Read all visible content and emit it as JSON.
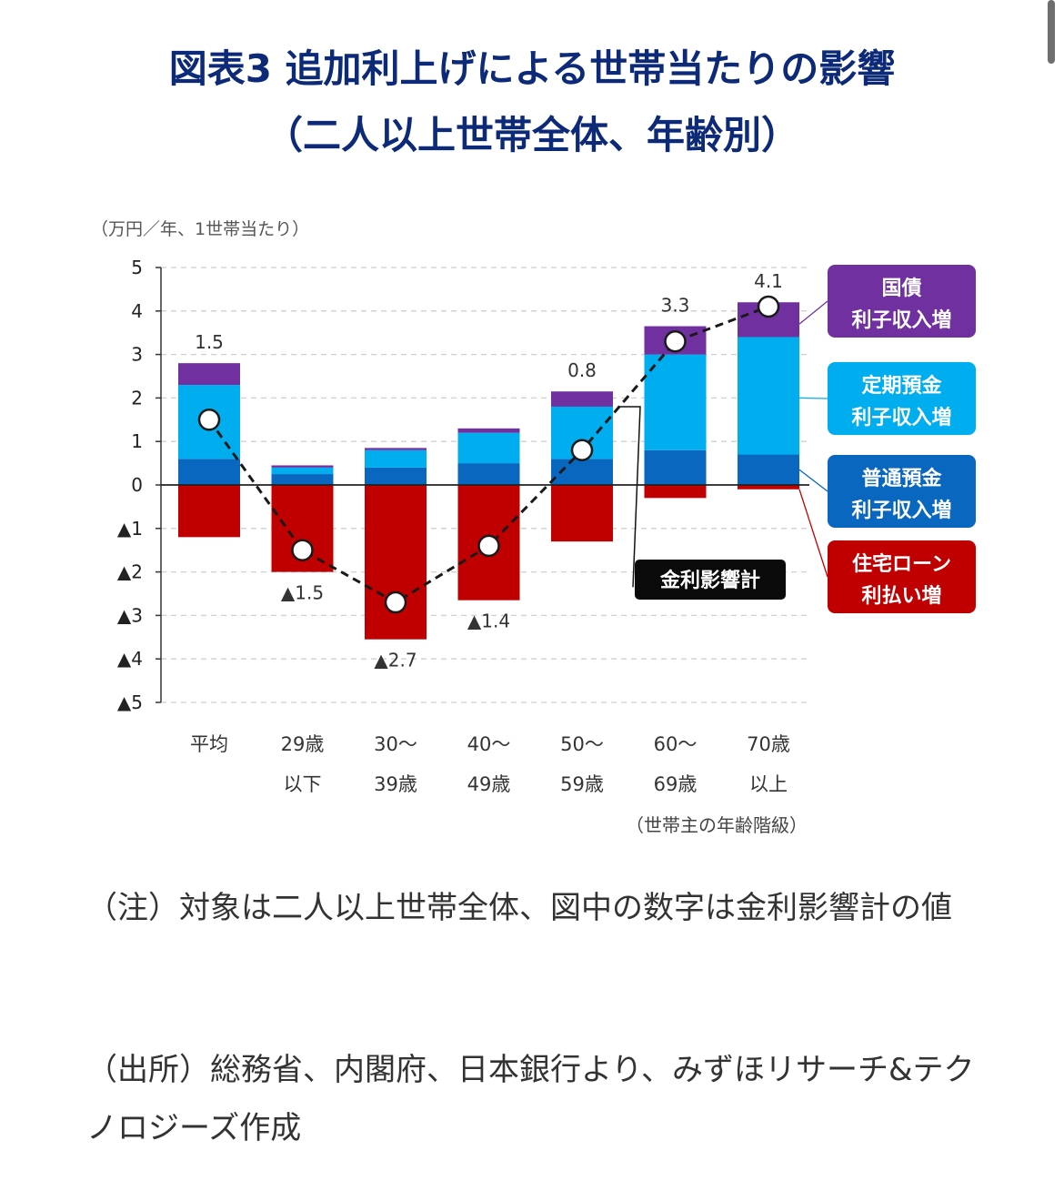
{
  "header": {
    "title_line1": "図表3 追加利上げによる世帯当たりの影響",
    "title_line2": "（二人以上世帯全体、年齢別）"
  },
  "chart_data": {
    "type": "bar",
    "stacked": true,
    "y_unit_label": "（万円／年、1世帯当たり）",
    "xlabel": "（世帯主の年齢階級）",
    "ylim": [
      -5,
      5
    ],
    "y_ticks": [
      5,
      4,
      3,
      2,
      1,
      0,
      -1,
      -2,
      -3,
      -4,
      -5
    ],
    "y_tick_labels": [
      "5",
      "4",
      "3",
      "2",
      "1",
      "0",
      "▲1",
      "▲2",
      "▲3",
      "▲4",
      "▲5"
    ],
    "categories": [
      [
        "平均",
        ""
      ],
      [
        "29歳",
        "以下"
      ],
      [
        "30～",
        "39歳"
      ],
      [
        "40～",
        "49歳"
      ],
      [
        "50～",
        "59歳"
      ],
      [
        "60～",
        "69歳"
      ],
      [
        "70歳",
        "以上"
      ]
    ],
    "series": [
      {
        "name": "普通預金利子収入増",
        "color": "#0a67c0",
        "values": [
          0.6,
          0.25,
          0.4,
          0.5,
          0.6,
          0.8,
          0.7
        ]
      },
      {
        "name": "定期預金利子収入増",
        "color": "#00aeef",
        "values": [
          1.7,
          0.15,
          0.4,
          0.7,
          1.2,
          2.2,
          2.7
        ]
      },
      {
        "name": "国債利子収入増",
        "color": "#7030a0",
        "values": [
          0.5,
          0.05,
          0.05,
          0.1,
          0.35,
          0.65,
          0.8
        ]
      },
      {
        "name": "住宅ローン利払い増",
        "color": "#c00000",
        "values": [
          -1.2,
          -2.0,
          -3.55,
          -2.65,
          -1.3,
          -0.3,
          -0.1
        ]
      }
    ],
    "line": {
      "name": "金利影響計",
      "values": [
        1.5,
        -1.5,
        -2.7,
        -1.4,
        0.8,
        3.3,
        4.1
      ],
      "labels": [
        "1.5",
        "▲1.5",
        "▲2.7",
        "▲1.4",
        "0.8",
        "3.3",
        "4.1"
      ]
    },
    "legend": [
      {
        "line1": "国債",
        "line2": "利子収入増",
        "color": "#7030a0"
      },
      {
        "line1": "定期預金",
        "line2": "利子収入増",
        "color": "#00aeef"
      },
      {
        "line1": "普通預金",
        "line2": "利子収入増",
        "color": "#0a67c0"
      },
      {
        "line1": "住宅ローン",
        "line2": "利払い増",
        "color": "#c00000"
      }
    ],
    "callout_label": "金利影響計",
    "legend_placement": "right",
    "grid": true
  },
  "notes": {
    "note1": "（注）対象は二人以上世帯全体、図中の数字は金利影響計の値",
    "note2": "（出所）総務省、内閣府、日本銀行より、みずほリサーチ&テクノロジーズ作成"
  }
}
